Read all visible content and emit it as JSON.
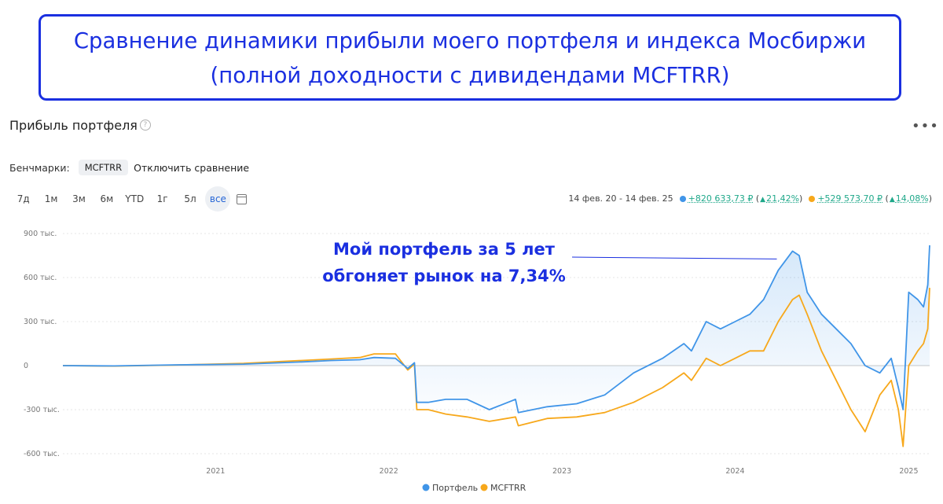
{
  "banner": {
    "line1": "Сравнение динамики прибыли моего портфеля и индекса Мосбиржи",
    "line2": "(полной доходности с дивидендами MCFTRR)"
  },
  "panel": {
    "title": "Прибыль портфеля",
    "help_icon": "question-icon",
    "more_icon": "more-dots-icon"
  },
  "benchmarks": {
    "label": "Бенчмарки:",
    "chip": "MCFTRR",
    "disable": "Отключить сравнение"
  },
  "periods": [
    "7д",
    "1м",
    "3м",
    "6м",
    "YTD",
    "1г",
    "5л",
    "все"
  ],
  "active_period": "все",
  "calendar_icon": "calendar-icon",
  "stats": {
    "range": "14 фев. 20 - 14 фев. 25",
    "portfolio_profit": "+820 633,73 ₽",
    "portfolio_pct": "21,42%",
    "benchmark_profit": "+529 573,70 ₽",
    "benchmark_pct": "14,08%"
  },
  "annotation": {
    "line1": "Мой портфель за 5 лет",
    "line2": "обгоняет рынок на 7,34%"
  },
  "colors": {
    "portfolio": "#4095e8",
    "benchmark": "#f7a81b",
    "accent": "#1a2fe0",
    "positive": "#1fa88a"
  },
  "chart_data": {
    "type": "line",
    "x_ticks": [
      "2021",
      "2022",
      "2023",
      "2024",
      "2025"
    ],
    "y_ticks": [
      "900 тыс.",
      "600 тыс.",
      "300 тыс.",
      "0",
      "-300 тыс.",
      "-600 тыс."
    ],
    "ylim": [
      -600000,
      900000
    ],
    "xlim": [
      "2020-02-14",
      "2025-02-14"
    ],
    "legend_position": "bottom-center",
    "series": [
      {
        "name": "Портфель",
        "x": [
          "2020-02-14",
          "2020-06-01",
          "2020-10-01",
          "2021-03-01",
          "2021-07-01",
          "2021-09-01",
          "2021-11-01",
          "2021-12-01",
          "2022-01-15",
          "2022-02-10",
          "2022-02-24",
          "2022-03-01",
          "2022-03-25",
          "2022-05-01",
          "2022-06-15",
          "2022-08-01",
          "2022-09-25",
          "2022-10-01",
          "2022-12-01",
          "2023-02-01",
          "2023-04-01",
          "2023-06-01",
          "2023-08-01",
          "2023-09-15",
          "2023-10-01",
          "2023-11-01",
          "2023-12-01",
          "2024-01-01",
          "2024-02-01",
          "2024-03-01",
          "2024-04-01",
          "2024-05-01",
          "2024-05-15",
          "2024-06-01",
          "2024-07-01",
          "2024-08-01",
          "2024-09-01",
          "2024-10-01",
          "2024-11-01",
          "2024-11-25",
          "2024-12-10",
          "2024-12-20",
          "2025-01-01",
          "2025-01-20",
          "2025-02-01",
          "2025-02-10",
          "2025-02-14"
        ],
        "values": [
          0,
          -2000,
          5000,
          10000,
          25000,
          35000,
          40000,
          55000,
          50000,
          -20000,
          20000,
          -250000,
          -250000,
          -230000,
          -230000,
          -300000,
          -230000,
          -320000,
          -280000,
          -260000,
          -200000,
          -50000,
          50000,
          150000,
          100000,
          300000,
          250000,
          300000,
          350000,
          450000,
          650000,
          780000,
          750000,
          500000,
          350000,
          250000,
          150000,
          0,
          -50000,
          50000,
          -150000,
          -300000,
          500000,
          450000,
          400000,
          550000,
          820000
        ]
      },
      {
        "name": "MCFTRR",
        "x": [
          "2020-02-14",
          "2020-06-01",
          "2020-10-01",
          "2021-03-01",
          "2021-07-01",
          "2021-09-01",
          "2021-11-01",
          "2021-12-01",
          "2022-01-15",
          "2022-02-10",
          "2022-02-24",
          "2022-03-01",
          "2022-03-25",
          "2022-05-01",
          "2022-06-15",
          "2022-08-01",
          "2022-09-25",
          "2022-10-01",
          "2022-12-01",
          "2023-02-01",
          "2023-04-01",
          "2023-06-01",
          "2023-08-01",
          "2023-09-15",
          "2023-10-01",
          "2023-11-01",
          "2023-12-01",
          "2024-01-01",
          "2024-02-01",
          "2024-03-01",
          "2024-04-01",
          "2024-05-01",
          "2024-05-15",
          "2024-06-01",
          "2024-07-01",
          "2024-08-01",
          "2024-09-01",
          "2024-10-01",
          "2024-11-01",
          "2024-11-25",
          "2024-12-10",
          "2024-12-20",
          "2025-01-01",
          "2025-01-20",
          "2025-02-01",
          "2025-02-10",
          "2025-02-14"
        ],
        "values": [
          0,
          -3000,
          3000,
          15000,
          35000,
          45000,
          55000,
          80000,
          80000,
          -30000,
          10000,
          -300000,
          -300000,
          -330000,
          -350000,
          -380000,
          -350000,
          -410000,
          -360000,
          -350000,
          -320000,
          -250000,
          -150000,
          -50000,
          -100000,
          50000,
          0,
          50000,
          100000,
          100000,
          300000,
          450000,
          480000,
          350000,
          100000,
          -100000,
          -300000,
          -450000,
          -200000,
          -100000,
          -300000,
          -550000,
          0,
          100000,
          150000,
          250000,
          530000
        ]
      }
    ]
  }
}
